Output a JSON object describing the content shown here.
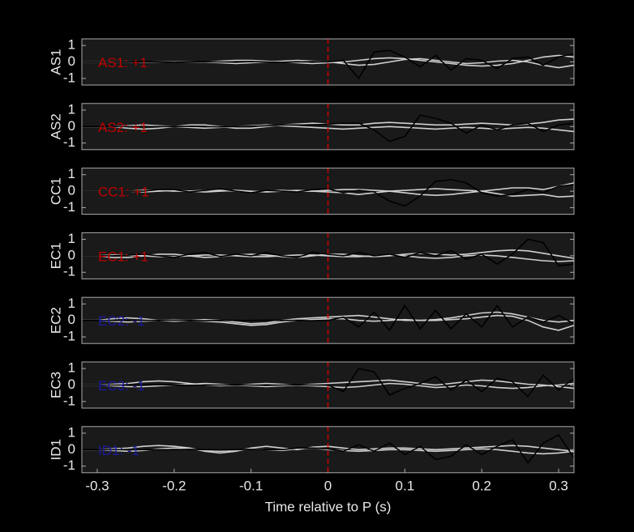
{
  "chart_data": [
    {
      "type": "line",
      "ylabel": "AS1",
      "annotation": "AS1: +1",
      "annotation_color": "#c00000",
      "vline": 0,
      "vline_color": "#d00000",
      "x": [
        -0.32,
        -0.3,
        -0.28,
        -0.26,
        -0.24,
        -0.22,
        -0.2,
        -0.18,
        -0.16,
        -0.14,
        -0.12,
        -0.1,
        -0.08,
        -0.06,
        -0.04,
        -0.02,
        0,
        0.02,
        0.04,
        0.06,
        0.08,
        0.1,
        0.12,
        0.14,
        0.16,
        0.18,
        0.2,
        0.22,
        0.24,
        0.26,
        0.28,
        0.3,
        0.32
      ],
      "xlim": [
        -0.32,
        0.32
      ],
      "ylim": [
        -1.4,
        1.4
      ],
      "yticks": [
        -1,
        0,
        1
      ],
      "series": [
        {
          "color": "#d0d0d0",
          "values": [
            0,
            0,
            0,
            0,
            0,
            0,
            0,
            0,
            0,
            0.05,
            0.1,
            0.1,
            0.05,
            0,
            -0.05,
            -0.1,
            -0.05,
            0,
            0.1,
            0.2,
            0.25,
            0.2,
            0.1,
            0,
            -0.1,
            -0.2,
            -0.25,
            -0.2,
            -0.1,
            0.1,
            0.3,
            0.4,
            0.3
          ]
        },
        {
          "color": "#d0d0d0",
          "values": [
            0,
            0,
            0,
            0,
            0,
            0,
            0,
            0,
            0,
            -0.05,
            -0.1,
            -0.05,
            0,
            0.05,
            0.1,
            0.05,
            0,
            -0.1,
            -0.2,
            -0.15,
            0,
            0.15,
            0.2,
            0.1,
            0,
            -0.1,
            -0.05,
            0.05,
            0.1,
            0,
            -0.2,
            -0.35,
            -0.2
          ]
        },
        {
          "color": "#000000",
          "values": [
            0,
            0,
            0,
            0,
            0.02,
            0,
            -0.02,
            0,
            0.02,
            0,
            0,
            0.02,
            0,
            -0.02,
            0,
            0.02,
            0,
            0.1,
            -1.0,
            0.6,
            0.7,
            0.3,
            -0.3,
            0.4,
            -0.5,
            0.2,
            0.1,
            -0.4,
            0.2,
            0.3,
            -0.2,
            0.3,
            0.5
          ]
        }
      ]
    },
    {
      "type": "line",
      "ylabel": "AS2",
      "annotation": "AS2: +1",
      "annotation_color": "#c00000",
      "vline": 0,
      "vline_color": "#d00000",
      "x": [
        -0.32,
        -0.3,
        -0.28,
        -0.26,
        -0.24,
        -0.22,
        -0.2,
        -0.18,
        -0.16,
        -0.14,
        -0.12,
        -0.1,
        -0.08,
        -0.06,
        -0.04,
        -0.02,
        0,
        0.02,
        0.04,
        0.06,
        0.08,
        0.1,
        0.12,
        0.14,
        0.16,
        0.18,
        0.2,
        0.22,
        0.24,
        0.26,
        0.28,
        0.3,
        0.32
      ],
      "xlim": [
        -0.32,
        0.32
      ],
      "ylim": [
        -1.4,
        1.4
      ],
      "yticks": [
        -1,
        0,
        1
      ],
      "series": [
        {
          "color": "#d0d0d0",
          "values": [
            0,
            0,
            0,
            -0.1,
            -0.15,
            -0.1,
            0,
            0.1,
            0.1,
            0,
            -0.1,
            -0.1,
            0,
            0.1,
            0.15,
            0.2,
            0.15,
            0.1,
            0.1,
            0.2,
            0.25,
            0.2,
            0.15,
            0.1,
            0.1,
            0.15,
            0.2,
            0.15,
            0.1,
            0.15,
            0.25,
            0.4,
            0.45
          ]
        },
        {
          "color": "#d0d0d0",
          "values": [
            0,
            0,
            0,
            0.05,
            0.1,
            0.05,
            0,
            -0.05,
            -0.1,
            -0.05,
            0,
            0.05,
            0.1,
            0.05,
            0,
            -0.05,
            -0.1,
            -0.15,
            -0.1,
            -0.05,
            0,
            -0.05,
            -0.1,
            -0.15,
            -0.1,
            -0.05,
            -0.1,
            -0.15,
            -0.1,
            -0.05,
            -0.1,
            -0.2,
            -0.3
          ]
        },
        {
          "color": "#000000",
          "values": [
            0,
            0,
            0,
            0,
            0,
            0,
            0,
            0.02,
            0,
            -0.02,
            0,
            0.02,
            0.05,
            0.1,
            0.1,
            0.1,
            0.15,
            0.2,
            0.2,
            -0.2,
            -0.9,
            -0.6,
            0.7,
            0.5,
            0.2,
            -0.4,
            0.1,
            -0.2,
            0.1,
            0.2,
            -0.3,
            0.1,
            0.2
          ]
        }
      ]
    },
    {
      "type": "line",
      "ylabel": "CC1",
      "annotation": "CC1: +1",
      "annotation_color": "#c00000",
      "vline": 0,
      "vline_color": "#d00000",
      "x": [
        -0.32,
        -0.3,
        -0.28,
        -0.26,
        -0.24,
        -0.22,
        -0.2,
        -0.18,
        -0.16,
        -0.14,
        -0.12,
        -0.1,
        -0.08,
        -0.06,
        -0.04,
        -0.02,
        0,
        0.02,
        0.04,
        0.06,
        0.08,
        0.1,
        0.12,
        0.14,
        0.16,
        0.18,
        0.2,
        0.22,
        0.24,
        0.26,
        0.28,
        0.3,
        0.32
      ],
      "xlim": [
        -0.32,
        0.32
      ],
      "ylim": [
        -1.4,
        1.4
      ],
      "yticks": [
        -1,
        0,
        1
      ],
      "series": [
        {
          "color": "#d0d0d0",
          "values": [
            0,
            0,
            0,
            0,
            0.05,
            0.05,
            0,
            0,
            0.05,
            0.05,
            0,
            -0.05,
            0,
            0.05,
            0,
            0,
            0.05,
            0.1,
            0.1,
            0.05,
            0,
            0.05,
            0.1,
            0.15,
            0.1,
            0.05,
            0,
            0.1,
            0.2,
            0.2,
            0.1,
            0.3,
            0.5
          ]
        },
        {
          "color": "#d0d0d0",
          "values": [
            0,
            0,
            0,
            0,
            -0.05,
            0,
            0.05,
            0,
            -0.05,
            0,
            0.05,
            0,
            -0.05,
            0,
            0.05,
            0,
            -0.05,
            -0.1,
            -0.2,
            -0.1,
            0,
            -0.1,
            -0.2,
            -0.25,
            -0.2,
            -0.1,
            0,
            -0.15,
            -0.3,
            -0.25,
            -0.2,
            -0.35,
            -0.3
          ]
        },
        {
          "color": "#000000",
          "values": [
            0,
            0,
            0,
            0,
            0,
            0.1,
            0.1,
            -0.05,
            0.05,
            0.15,
            0,
            -0.1,
            0.05,
            0,
            -0.05,
            0.1,
            0.15,
            -0.1,
            0.05,
            -0.05,
            -0.6,
            -0.9,
            -0.3,
            0.6,
            0.7,
            0.5,
            -0.1,
            -0.3,
            -0.2,
            0.1,
            -0.1,
            0.3,
            0.4
          ]
        }
      ]
    },
    {
      "type": "line",
      "ylabel": "EC1",
      "annotation": "EC1: +1",
      "annotation_color": "#c00000",
      "vline": 0,
      "vline_color": "#d00000",
      "x": [
        -0.32,
        -0.3,
        -0.28,
        -0.26,
        -0.24,
        -0.22,
        -0.2,
        -0.18,
        -0.16,
        -0.14,
        -0.12,
        -0.1,
        -0.08,
        -0.06,
        -0.04,
        -0.02,
        0,
        0.02,
        0.04,
        0.06,
        0.08,
        0.1,
        0.12,
        0.14,
        0.16,
        0.18,
        0.2,
        0.22,
        0.24,
        0.26,
        0.28,
        0.3,
        0.32
      ],
      "xlim": [
        -0.32,
        0.32
      ],
      "ylim": [
        -1.4,
        1.4
      ],
      "yticks": [
        -1,
        0,
        1
      ],
      "series": [
        {
          "color": "#d0d0d0",
          "values": [
            0,
            0,
            -0.1,
            -0.1,
            0,
            0.1,
            0.1,
            0,
            -0.1,
            -0.05,
            0.05,
            0.1,
            0.05,
            -0.05,
            -0.1,
            0,
            0.1,
            0.1,
            0,
            -0.05,
            0,
            0.1,
            0.15,
            0.1,
            0.05,
            0.1,
            0.2,
            0.3,
            0.35,
            0.3,
            0.15,
            0,
            -0.15
          ]
        },
        {
          "color": "#d0d0d0",
          "values": [
            0,
            0,
            0.05,
            0.05,
            0,
            -0.05,
            -0.05,
            0,
            0.05,
            0.05,
            0,
            -0.05,
            -0.05,
            0,
            0.05,
            0.05,
            0,
            -0.05,
            -0.05,
            0,
            0.05,
            0,
            -0.1,
            -0.15,
            -0.1,
            0,
            0.05,
            0,
            -0.1,
            -0.2,
            -0.3,
            -0.35,
            -0.3
          ]
        },
        {
          "color": "#000000",
          "values": [
            0,
            0,
            0,
            0.05,
            0.1,
            0,
            -0.1,
            0.1,
            0.2,
            -0.05,
            0.1,
            0,
            0.2,
            0,
            -0.1,
            0.2,
            0.1,
            0,
            0.2,
            0,
            0.1,
            -0.1,
            0.2,
            0,
            0.3,
            -0.2,
            0.1,
            -0.5,
            0.1,
            1.0,
            0.8,
            -0.6,
            -0.5
          ]
        }
      ]
    },
    {
      "type": "line",
      "ylabel": "EC2",
      "annotation": "EC2: -1",
      "annotation_color": "#1a1aa0",
      "vline": 0,
      "vline_color": "#d00000",
      "x": [
        -0.32,
        -0.3,
        -0.28,
        -0.26,
        -0.24,
        -0.22,
        -0.2,
        -0.18,
        -0.16,
        -0.14,
        -0.12,
        -0.1,
        -0.08,
        -0.06,
        -0.04,
        -0.02,
        0,
        0.02,
        0.04,
        0.06,
        0.08,
        0.1,
        0.12,
        0.14,
        0.16,
        0.18,
        0.2,
        0.22,
        0.24,
        0.26,
        0.28,
        0.3,
        0.32
      ],
      "xlim": [
        -0.32,
        0.32
      ],
      "ylim": [
        -1.4,
        1.4
      ],
      "yticks": [
        -1,
        0,
        1
      ],
      "series": [
        {
          "color": "#d0d0d0",
          "values": [
            0,
            0,
            0.1,
            0.15,
            0.1,
            0,
            -0.05,
            0,
            0.05,
            0,
            -0.1,
            -0.2,
            -0.15,
            0,
            0.1,
            0.15,
            0.2,
            0.25,
            0.3,
            0.2,
            0.1,
            0,
            0,
            0.05,
            0.15,
            0.3,
            0.45,
            0.5,
            0.4,
            0.2,
            0,
            -0.1,
            0
          ]
        },
        {
          "color": "#d0d0d0",
          "values": [
            0,
            0,
            -0.05,
            -0.1,
            -0.05,
            0,
            0.05,
            0,
            -0.05,
            -0.1,
            -0.2,
            -0.3,
            -0.25,
            -0.1,
            0,
            0.05,
            0.1,
            0.1,
            0,
            -0.05,
            0,
            0.05,
            0,
            0,
            0.05,
            0.1,
            0.2,
            0.3,
            0.25,
            0,
            -0.4,
            -0.6,
            -0.3
          ]
        },
        {
          "color": "#000000",
          "values": [
            0,
            0,
            0,
            0,
            0,
            0,
            0.02,
            0,
            -0.02,
            0,
            0,
            0,
            0.02,
            0,
            0,
            -0.02,
            0,
            0.2,
            -0.4,
            0.5,
            -0.6,
            0.9,
            -0.5,
            0.6,
            -0.5,
            0.4,
            -0.4,
            0.9,
            -0.4,
            0.2,
            -0.1,
            0.3,
            -0.2
          ]
        }
      ]
    },
    {
      "type": "line",
      "ylabel": "EC3",
      "annotation": "EC3: -1",
      "annotation_color": "#1a1aa0",
      "vline": 0,
      "vline_color": "#d00000",
      "x": [
        -0.32,
        -0.3,
        -0.28,
        -0.26,
        -0.24,
        -0.22,
        -0.2,
        -0.18,
        -0.16,
        -0.14,
        -0.12,
        -0.1,
        -0.08,
        -0.06,
        -0.04,
        -0.02,
        0,
        0.02,
        0.04,
        0.06,
        0.08,
        0.1,
        0.12,
        0.14,
        0.16,
        0.18,
        0.2,
        0.22,
        0.24,
        0.26,
        0.28,
        0.3,
        0.32
      ],
      "xlim": [
        -0.32,
        0.32
      ],
      "ylim": [
        -1.4,
        1.4
      ],
      "yticks": [
        -1,
        0,
        1
      ],
      "series": [
        {
          "color": "#d0d0d0",
          "values": [
            0,
            0,
            0.05,
            0.1,
            0.2,
            0.25,
            0.2,
            0.1,
            0,
            -0.05,
            0,
            0.05,
            0.1,
            0.05,
            0,
            0.05,
            0.1,
            0.15,
            0.2,
            0.25,
            0.3,
            0.2,
            0.1,
            0,
            0.1,
            0.2,
            0.3,
            0.25,
            0.15,
            0.05,
            0,
            -0.1,
            -0.2
          ]
        },
        {
          "color": "#d0d0d0",
          "values": [
            0,
            0,
            -0.05,
            -0.1,
            -0.1,
            -0.05,
            0,
            0.05,
            0.1,
            0.05,
            0,
            -0.05,
            -0.1,
            -0.05,
            0,
            -0.05,
            -0.1,
            -0.15,
            -0.1,
            0,
            0.1,
            0.05,
            -0.05,
            -0.15,
            -0.1,
            0,
            -0.05,
            -0.15,
            -0.2,
            -0.15,
            -0.05,
            0,
            0.1
          ]
        },
        {
          "color": "#000000",
          "values": [
            0,
            0,
            0,
            0,
            0,
            0.02,
            0,
            -0.02,
            0,
            0,
            0.02,
            0,
            -0.02,
            0,
            0.02,
            0,
            0,
            -0.4,
            1.0,
            0.8,
            -0.6,
            -0.2,
            0.1,
            0.5,
            -0.3,
            0.3,
            -0.4,
            0.4,
            0.2,
            -0.7,
            0.6,
            -0.3,
            0.4
          ]
        }
      ]
    },
    {
      "type": "line",
      "ylabel": "ID1",
      "annotation": "ID1: -1",
      "annotation_color": "#1a1aa0",
      "vline": 0,
      "vline_color": "#d00000",
      "x": [
        -0.32,
        -0.3,
        -0.28,
        -0.26,
        -0.24,
        -0.22,
        -0.2,
        -0.18,
        -0.16,
        -0.14,
        -0.12,
        -0.1,
        -0.08,
        -0.06,
        -0.04,
        -0.02,
        0,
        0.02,
        0.04,
        0.06,
        0.08,
        0.1,
        0.12,
        0.14,
        0.16,
        0.18,
        0.2,
        0.22,
        0.24,
        0.26,
        0.28,
        0.3,
        0.32
      ],
      "xlim": [
        -0.32,
        0.32
      ],
      "ylim": [
        -1.4,
        1.4
      ],
      "yticks": [
        -1,
        0,
        1
      ],
      "xticks": [
        -0.3,
        -0.2,
        -0.1,
        0,
        0.1,
        0.2,
        0.3
      ],
      "xlabel": "Time relative to P (s)",
      "series": [
        {
          "color": "#d0d0d0",
          "values": [
            0,
            0,
            0.05,
            0.1,
            0.2,
            0.25,
            0.2,
            0.1,
            -0.1,
            -0.2,
            -0.1,
            0.1,
            0.2,
            0.1,
            0,
            0.15,
            0.2,
            0.1,
            0,
            0.05,
            0.1,
            0.1,
            0.05,
            0,
            0.05,
            0.1,
            0.15,
            0.2,
            0.25,
            0.2,
            0.1,
            0,
            -0.1
          ]
        },
        {
          "color": "#d0d0d0",
          "values": [
            0,
            0,
            -0.05,
            -0.1,
            -0.05,
            0.05,
            0.1,
            0.05,
            -0.05,
            -0.1,
            -0.05,
            0.05,
            0,
            -0.05,
            0.05,
            0.1,
            0,
            -0.05,
            -0.1,
            -0.05,
            0,
            0,
            -0.05,
            -0.1,
            -0.05,
            0,
            0.05,
            0,
            -0.1,
            -0.2,
            -0.25,
            -0.2,
            -0.1
          ]
        },
        {
          "color": "#000000",
          "values": [
            0,
            0,
            0,
            0,
            0,
            0,
            0,
            0.02,
            0,
            -0.02,
            0,
            0.02,
            0,
            0,
            0.1,
            0.1,
            0.05,
            -0.1,
            0.3,
            -0.1,
            0.4,
            -0.3,
            0.2,
            -0.6,
            -0.4,
            0.3,
            -0.3,
            0.2,
            0.6,
            -0.8,
            0.4,
            0.9,
            -0.5
          ]
        }
      ]
    }
  ]
}
